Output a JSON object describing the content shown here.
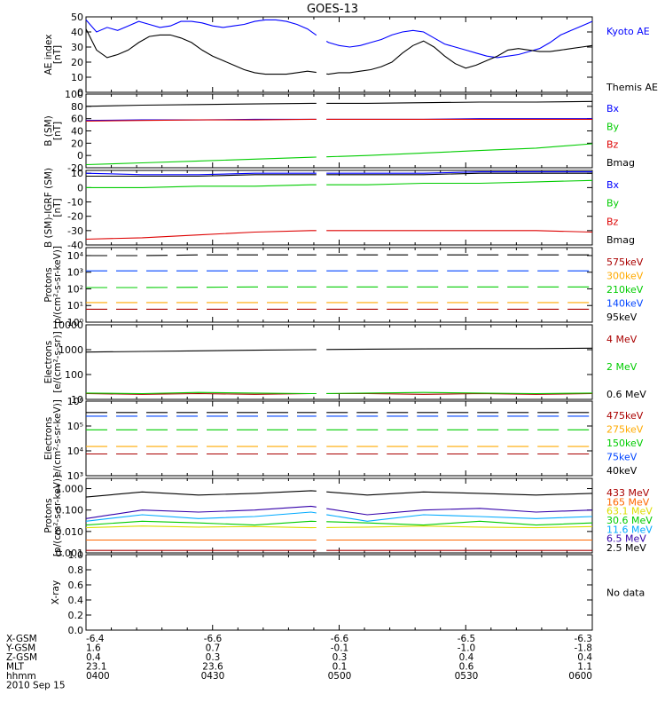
{
  "title": "GOES-13",
  "no_data_label": "No data",
  "chart_data": [
    {
      "type": "line",
      "panel": "ae",
      "ylabel": [
        "AE index",
        "[nT]"
      ],
      "ylim": [
        0,
        50
      ],
      "yticks": [
        "0",
        "10",
        "20",
        "30",
        "40",
        "50"
      ],
      "ytick_values": [
        0,
        10,
        20,
        30,
        40,
        50
      ],
      "series": [
        {
          "name": "Kyoto AE",
          "color": "#0000ff",
          "values": [
            48,
            40,
            43,
            41,
            44,
            47,
            45,
            43,
            44,
            47,
            47,
            46,
            44,
            43,
            44,
            45,
            47,
            48,
            48,
            47,
            45,
            42,
            37,
            33,
            31,
            30,
            31,
            33,
            35,
            38,
            40,
            41,
            40,
            36,
            32,
            30,
            28,
            26,
            24,
            23,
            24,
            25,
            27,
            29,
            33,
            38,
            41,
            44,
            47
          ]
        },
        {
          "name": "Themis AE",
          "color": "#000000",
          "values": [
            42,
            28,
            23,
            25,
            28,
            33,
            37,
            38,
            38,
            36,
            33,
            28,
            24,
            21,
            18,
            15,
            13,
            12,
            12,
            12,
            13,
            14,
            13,
            12,
            13,
            13,
            14,
            15,
            17,
            20,
            26,
            31,
            34,
            30,
            24,
            19,
            16,
            18,
            21,
            24,
            28,
            29,
            28,
            27,
            27,
            28,
            29,
            30,
            31
          ]
        }
      ]
    },
    {
      "type": "line",
      "panel": "bsm",
      "ylabel": [
        "B (SM)",
        "[nT]"
      ],
      "ylim": [
        -20,
        100
      ],
      "yticks": [
        "-20",
        "0",
        "20",
        "40",
        "60",
        "80",
        "100"
      ],
      "ytick_values": [
        -20,
        0,
        20,
        40,
        60,
        80,
        100
      ],
      "series": [
        {
          "name": "Bx",
          "color": "#0000ff",
          "values": [
            57,
            58,
            58,
            59,
            59,
            59,
            59,
            60,
            60,
            60
          ]
        },
        {
          "name": "By",
          "color": "#00cc00",
          "values": [
            -15,
            -12,
            -9,
            -6,
            -3,
            0,
            4,
            8,
            12,
            19
          ]
        },
        {
          "name": "Bz",
          "color": "#dd0000",
          "values": [
            56,
            57,
            58,
            58,
            59,
            59,
            59,
            59,
            59,
            59
          ]
        },
        {
          "name": "Bmag",
          "color": "#000000",
          "values": [
            80,
            82,
            83,
            84,
            85,
            85,
            86,
            87,
            87,
            88
          ]
        }
      ]
    },
    {
      "type": "line",
      "panel": "bigrf",
      "ylabel": [
        "B (SM)-IGRF (SM)",
        "[nT]"
      ],
      "ylim": [
        -40,
        12
      ],
      "yticks": [
        "-40",
        "-30",
        "-20",
        "-10",
        "0",
        "10"
      ],
      "ytick_values": [
        -40,
        -30,
        -20,
        -10,
        0,
        10
      ],
      "series": [
        {
          "name": "Bx",
          "color": "#0000ff",
          "values": [
            10,
            9,
            9,
            10,
            10,
            10,
            10,
            11,
            11,
            11
          ]
        },
        {
          "name": "By",
          "color": "#00cc00",
          "values": [
            0,
            0,
            1,
            1,
            2,
            2,
            3,
            3,
            4,
            5
          ]
        },
        {
          "name": "Bz",
          "color": "#dd0000",
          "values": [
            -36,
            -35,
            -33,
            -31,
            -30,
            -30,
            -30,
            -30,
            -30,
            -31
          ]
        },
        {
          "name": "Bmag",
          "color": "#000000",
          "values": [
            8,
            8,
            8,
            9,
            9,
            9,
            9,
            10,
            10,
            10
          ]
        }
      ]
    },
    {
      "type": "line",
      "panel": "protons_low",
      "scale": "log",
      "ylabel": [
        "Protons",
        "p/(cm²-s-sr-keV)]"
      ],
      "ylim": [
        1,
        30000
      ],
      "yticks": [
        "10⁰",
        "10¹",
        "10²",
        "10³",
        "10⁴"
      ],
      "ytick_values": [
        1,
        10,
        100,
        1000,
        10000
      ],
      "series": [
        {
          "name": "575keV",
          "color": "#aa0000",
          "values": [
            6,
            6,
            6,
            6,
            6,
            6,
            6,
            6,
            6,
            6
          ]
        },
        {
          "name": "300keV",
          "color": "#ffaa00",
          "values": [
            15,
            15,
            15,
            15,
            15,
            15,
            15,
            15,
            15,
            15
          ]
        },
        {
          "name": "210keV",
          "color": "#00cc00",
          "values": [
            120,
            120,
            125,
            130,
            130,
            130,
            130,
            130,
            130,
            130
          ]
        },
        {
          "name": "140keV",
          "color": "#0044ff",
          "values": [
            1200,
            1200,
            1200,
            1200,
            1200,
            1200,
            1200,
            1200,
            1200,
            1200
          ]
        },
        {
          "name": "95keV",
          "color": "#000000",
          "values": [
            10000,
            10000,
            11000,
            11000,
            11000,
            11000,
            11000,
            11000,
            11000,
            11000
          ]
        }
      ]
    },
    {
      "type": "line",
      "panel": "electrons_mev",
      "scale": "log",
      "ylabel": [
        "Electrons",
        "[e/(cm²-s-sr)]"
      ],
      "ylim": [
        10,
        10000
      ],
      "yticks": [
        "10",
        "100",
        "1000",
        "10000"
      ],
      "ytick_values": [
        10,
        100,
        1000,
        10000
      ],
      "series": [
        {
          "name": "4 MeV",
          "color": "#aa0000",
          "values": [
            17,
            16,
            17,
            16,
            17,
            17,
            16,
            17,
            16,
            17
          ]
        },
        {
          "name": "2 MeV",
          "color": "#00cc00",
          "values": [
            18,
            17,
            19,
            18,
            17,
            18,
            19,
            18,
            17,
            18
          ]
        },
        {
          "name": "0.6 MeV",
          "color": "#000000",
          "values": [
            800,
            850,
            900,
            950,
            1000,
            1050,
            1080,
            1100,
            1100,
            1150
          ]
        }
      ]
    },
    {
      "type": "line",
      "panel": "electrons_kev",
      "scale": "log",
      "ylabel": [
        "Electrons",
        "e/(cm²-s-sr-keV)]"
      ],
      "ylim": [
        1000,
        1000000
      ],
      "yticks": [
        "10³",
        "10⁴",
        "10⁵",
        "10⁶"
      ],
      "ytick_values": [
        1000,
        10000,
        100000,
        1000000
      ],
      "series": [
        {
          "name": "475keV",
          "color": "#aa0000",
          "values": [
            7500,
            7500,
            7500,
            7500,
            7500,
            7500,
            7500,
            7500,
            7500,
            7500
          ]
        },
        {
          "name": "275keV",
          "color": "#ffaa00",
          "values": [
            15000,
            15000,
            15000,
            15000,
            15000,
            15000,
            15000,
            15000,
            15000,
            15000
          ]
        },
        {
          "name": "150keV",
          "color": "#00cc00",
          "values": [
            70000,
            70000,
            70000,
            70000,
            70000,
            70000,
            70000,
            70000,
            70000,
            70000
          ]
        },
        {
          "name": "75keV",
          "color": "#0044ff",
          "values": [
            250000,
            250000,
            250000,
            250000,
            250000,
            250000,
            250000,
            250000,
            250000,
            250000
          ]
        },
        {
          "name": "40keV",
          "color": "#000000",
          "values": [
            350000,
            350000,
            350000,
            350000,
            350000,
            350000,
            350000,
            350000,
            350000,
            350000
          ]
        }
      ]
    },
    {
      "type": "line",
      "panel": "protons_mev",
      "scale": "log",
      "ylabel": [
        "Protons",
        "[p/(cm²-s-sr-keV)]"
      ],
      "ylim": [
        0.001,
        3
      ],
      "yticks": [
        "0.001",
        "0.010",
        "0.100",
        "1.000"
      ],
      "ytick_values": [
        0.001,
        0.01,
        0.1,
        1
      ],
      "series": [
        {
          "name": "433 MeV",
          "color": "#aa0000",
          "values": [
            0.0013,
            0.0013,
            0.0013,
            0.0013,
            0.0013,
            0.0013,
            0.0013,
            0.0013,
            0.0013,
            0.0013
          ]
        },
        {
          "name": "165 MeV",
          "color": "#ff6600",
          "values": [
            0.004,
            0.004,
            0.004,
            0.004,
            0.004,
            0.004,
            0.004,
            0.004,
            0.004,
            0.004
          ]
        },
        {
          "name": "63.1 MeV",
          "color": "#dddd00",
          "values": [
            0.015,
            0.018,
            0.016,
            0.017,
            0.015,
            0.016,
            0.018,
            0.016,
            0.015,
            0.017
          ]
        },
        {
          "name": "30.6 MeV",
          "color": "#00cc00",
          "values": [
            0.02,
            0.03,
            0.025,
            0.02,
            0.03,
            0.025,
            0.02,
            0.03,
            0.02,
            0.025
          ]
        },
        {
          "name": "11.6 MeV",
          "color": "#00aaff",
          "values": [
            0.03,
            0.06,
            0.04,
            0.05,
            0.08,
            0.03,
            0.06,
            0.05,
            0.04,
            0.05
          ]
        },
        {
          "name": "6.5 MeV",
          "color": "#3300aa",
          "values": [
            0.04,
            0.1,
            0.08,
            0.1,
            0.15,
            0.06,
            0.1,
            0.12,
            0.08,
            0.1
          ]
        },
        {
          "name": "2.5 MeV",
          "color": "#000000",
          "values": [
            0.4,
            0.7,
            0.5,
            0.6,
            0.8,
            0.5,
            0.7,
            0.6,
            0.5,
            0.6
          ]
        }
      ]
    },
    {
      "type": "line",
      "panel": "xray",
      "ylabel": [
        "X-ray"
      ],
      "ylim": [
        0,
        1
      ],
      "yticks": [
        "0.0",
        "0.2",
        "0.4",
        "0.6",
        "0.8",
        "1.0"
      ],
      "ytick_values": [
        0,
        0.2,
        0.4,
        0.6,
        0.8,
        1.0
      ],
      "series": []
    }
  ],
  "xaxis_table": {
    "rows": [
      {
        "label": "X-GSM",
        "values": [
          "-6.4",
          "-6.6",
          "-6.6",
          "-6.5",
          "-6.3"
        ]
      },
      {
        "label": "Y-GSM",
        "values": [
          "1.6",
          "0.7",
          "-0.1",
          "-1.0",
          "-1.8"
        ]
      },
      {
        "label": "Z-GSM",
        "values": [
          "0.4",
          "0.3",
          "0.3",
          "0.4",
          "0.4"
        ]
      },
      {
        "label": "MLT",
        "values": [
          "23.1",
          "23.6",
          "0.1",
          "0.6",
          "1.1"
        ]
      },
      {
        "label": "hhmm",
        "values": [
          "0400",
          "0430",
          "0500",
          "0530",
          "0600"
        ]
      }
    ],
    "date": "2010 Sep 15"
  }
}
